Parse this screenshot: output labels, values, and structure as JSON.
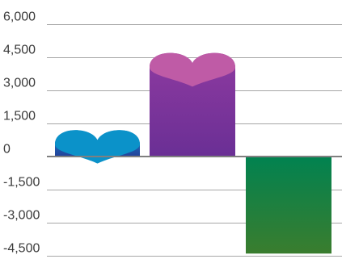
{
  "chart_data": {
    "type": "bar",
    "title": "",
    "xlabel": "",
    "ylabel": "",
    "categories": [
      "",
      "",
      ""
    ],
    "values": [
      1300,
      4800,
      -4400
    ],
    "ylim": [
      -4500,
      6000
    ],
    "y_ticks": [
      6000,
      4500,
      3000,
      1500,
      0,
      -1500,
      -3000,
      -4500
    ],
    "y_tick_labels": [
      "6,000",
      "4,500",
      "3,000",
      "1,500",
      "0",
      "-1,500",
      "-3,000",
      "-4,500"
    ],
    "grid": true,
    "legend": "none",
    "bar_colors": [
      {
        "top": "#1a8ccf",
        "bottom": "#22419a",
        "cap": "#0b92c9"
      },
      {
        "top": "#8e3aa0",
        "bottom": "#6a2f95",
        "cap": "#bf5ba6"
      },
      {
        "top": "#018250",
        "bottom": "#3a7d2e",
        "cap": null
      }
    ]
  }
}
